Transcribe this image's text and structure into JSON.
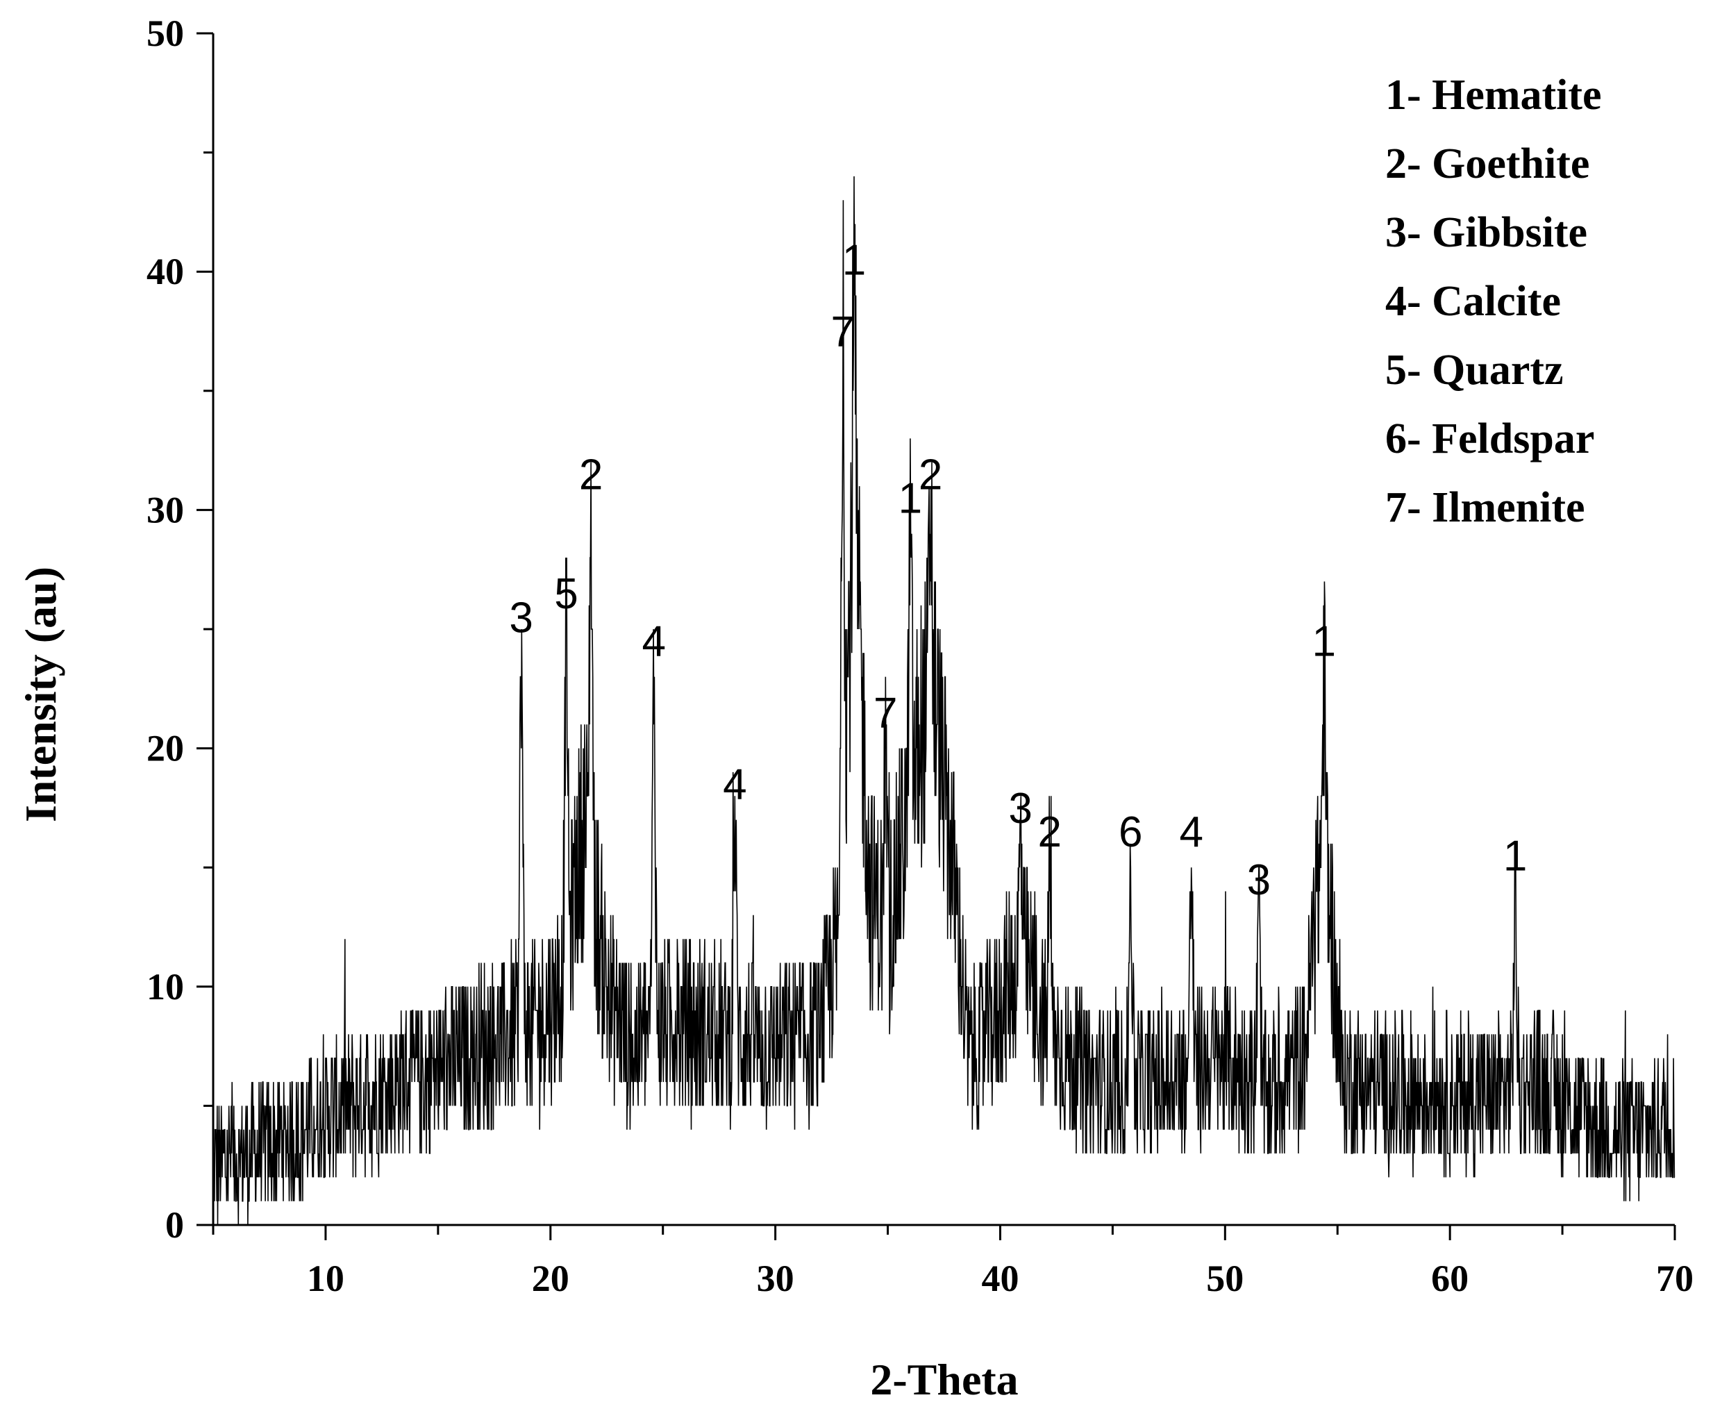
{
  "chart_data": {
    "type": "line",
    "title": "",
    "xlabel": "2-Theta",
    "ylabel": "Intensity (au)",
    "xlim": [
      5,
      70
    ],
    "ylim": [
      0,
      50
    ],
    "x_ticks": [
      10,
      20,
      30,
      40,
      50,
      60,
      70
    ],
    "y_ticks": [
      0,
      10,
      20,
      30,
      40,
      50
    ],
    "grid": false,
    "legend_position": "top-right",
    "legend": [
      "1- Hematite",
      "2- Goethite",
      "3- Gibbsite",
      "4- Calcite",
      "5- Quartz",
      "6- Feldspar",
      "7- Ilmenite"
    ],
    "line_color": "#000000",
    "peaks": [
      {
        "x": 18.7,
        "y": 24,
        "label": "3"
      },
      {
        "x": 20.7,
        "y": 25,
        "label": "5"
      },
      {
        "x": 21.8,
        "y": 30,
        "label": "2"
      },
      {
        "x": 24.6,
        "y": 23,
        "label": "4"
      },
      {
        "x": 28.2,
        "y": 17,
        "label": "4"
      },
      {
        "x": 33.0,
        "y": 36,
        "label": "7"
      },
      {
        "x": 33.5,
        "y": 39,
        "label": "1"
      },
      {
        "x": 34.9,
        "y": 20,
        "label": "7"
      },
      {
        "x": 36.0,
        "y": 29,
        "label": "1"
      },
      {
        "x": 36.9,
        "y": 30,
        "label": "2"
      },
      {
        "x": 40.9,
        "y": 16,
        "label": "3"
      },
      {
        "x": 42.2,
        "y": 15,
        "label": "2"
      },
      {
        "x": 45.8,
        "y": 15,
        "label": "6"
      },
      {
        "x": 48.5,
        "y": 15,
        "label": "4"
      },
      {
        "x": 51.5,
        "y": 13,
        "label": "3"
      },
      {
        "x": 54.4,
        "y": 23,
        "label": "1"
      },
      {
        "x": 62.9,
        "y": 14,
        "label": "1"
      }
    ],
    "baseline": [
      [
        5,
        2.5
      ],
      [
        8,
        3.5
      ],
      [
        10,
        4.5
      ],
      [
        12,
        5.5
      ],
      [
        15,
        6.5
      ],
      [
        18,
        8
      ],
      [
        19.5,
        8.5
      ],
      [
        20.5,
        10
      ],
      [
        21.5,
        17
      ],
      [
        22.5,
        10
      ],
      [
        23.5,
        7.5
      ],
      [
        25,
        8.5
      ],
      [
        28,
        8
      ],
      [
        30,
        7.5
      ],
      [
        32,
        8
      ],
      [
        32.8,
        12
      ],
      [
        33.5,
        30
      ],
      [
        34.2,
        14
      ],
      [
        35,
        12
      ],
      [
        36,
        18
      ],
      [
        37,
        23
      ],
      [
        38,
        14
      ],
      [
        38.6,
        7
      ],
      [
        40,
        9
      ],
      [
        41,
        11.5
      ],
      [
        42,
        8
      ],
      [
        44,
        6
      ],
      [
        47,
        6
      ],
      [
        50,
        7
      ],
      [
        52,
        5.5
      ],
      [
        53.5,
        7
      ],
      [
        54.4,
        17
      ],
      [
        55.2,
        6
      ],
      [
        58,
        5.5
      ],
      [
        62,
        5.5
      ],
      [
        64,
        6
      ],
      [
        66,
        4.5
      ],
      [
        68,
        3.8
      ],
      [
        70,
        4.5
      ]
    ]
  }
}
